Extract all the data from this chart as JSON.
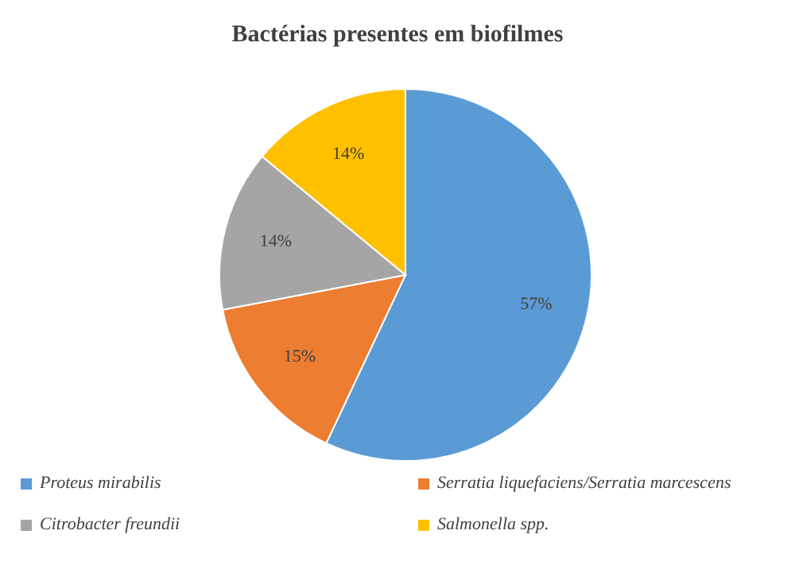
{
  "chart_data": {
    "type": "pie",
    "title": "Bactérias presentes em biofilmes",
    "categories": [
      "Proteus mirabilis",
      "Serratia liquefaciens/Serratia marcescens",
      "Citrobacter freundii",
      "Salmonella spp."
    ],
    "values": [
      57,
      15,
      14,
      14
    ],
    "value_labels": [
      "57%",
      "15%",
      "14%",
      "14%"
    ],
    "colors": [
      "#5b9bd5",
      "#ed7d31",
      "#a5a5a5",
      "#ffc000"
    ],
    "legend": "bottom"
  }
}
